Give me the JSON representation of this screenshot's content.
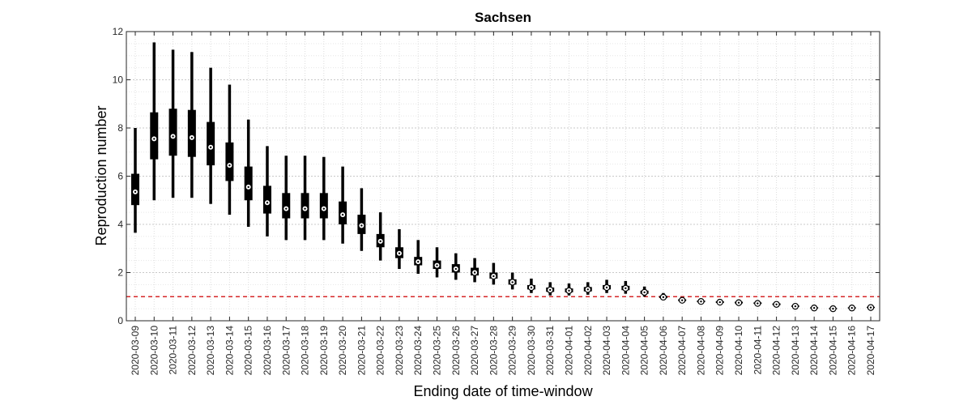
{
  "chart_data": {
    "type": "boxplot",
    "title": "Sachsen",
    "xlabel": "Ending date of time-window",
    "ylabel": "Reproduction number",
    "ylim": [
      0,
      12
    ],
    "yticks": [
      0,
      2,
      4,
      6,
      8,
      10,
      12
    ],
    "grid": true,
    "reference_line": {
      "y": 1,
      "color": "#d62728",
      "style": "dashed"
    },
    "categories": [
      "2020-03-09",
      "2020-03-10",
      "2020-03-11",
      "2020-03-12",
      "2020-03-13",
      "2020-03-14",
      "2020-03-15",
      "2020-03-16",
      "2020-03-17",
      "2020-03-18",
      "2020-03-19",
      "2020-03-20",
      "2020-03-21",
      "2020-03-22",
      "2020-03-23",
      "2020-03-24",
      "2020-03-25",
      "2020-03-26",
      "2020-03-27",
      "2020-03-28",
      "2020-03-29",
      "2020-03-30",
      "2020-03-31",
      "2020-04-01",
      "2020-04-02",
      "2020-04-03",
      "2020-04-04",
      "2020-04-05",
      "2020-04-06",
      "2020-04-07",
      "2020-04-08",
      "2020-04-09",
      "2020-04-10",
      "2020-04-11",
      "2020-04-12",
      "2020-04-13",
      "2020-04-14",
      "2020-04-15",
      "2020-04-16",
      "2020-04-17"
    ],
    "median": [
      5.35,
      7.55,
      7.65,
      7.6,
      7.2,
      6.45,
      5.55,
      4.9,
      4.65,
      4.65,
      4.65,
      4.4,
      3.95,
      3.3,
      2.8,
      2.45,
      2.3,
      2.15,
      2.0,
      1.85,
      1.6,
      1.38,
      1.28,
      1.25,
      1.3,
      1.38,
      1.35,
      1.18,
      0.98,
      0.85,
      0.8,
      0.77,
      0.75,
      0.72,
      0.68,
      0.6,
      0.53,
      0.5,
      0.53,
      0.55
    ],
    "q1": [
      4.8,
      6.7,
      6.85,
      6.8,
      6.45,
      5.8,
      5.0,
      4.45,
      4.25,
      4.25,
      4.25,
      4.0,
      3.6,
      3.05,
      2.6,
      2.3,
      2.15,
      2.0,
      1.88,
      1.75,
      1.5,
      1.3,
      1.2,
      1.18,
      1.22,
      1.3,
      1.27,
      1.12,
      0.94,
      0.82,
      0.77,
      0.74,
      0.72,
      0.7,
      0.65,
      0.58,
      0.51,
      0.48,
      0.51,
      0.53
    ],
    "q3": [
      6.1,
      8.65,
      8.8,
      8.75,
      8.25,
      7.4,
      6.4,
      5.6,
      5.3,
      5.3,
      5.3,
      4.95,
      4.4,
      3.6,
      3.05,
      2.65,
      2.5,
      2.35,
      2.2,
      2.0,
      1.72,
      1.48,
      1.38,
      1.34,
      1.4,
      1.48,
      1.45,
      1.25,
      1.03,
      0.89,
      0.84,
      0.81,
      0.79,
      0.76,
      0.72,
      0.63,
      0.56,
      0.53,
      0.56,
      0.58
    ],
    "whisker_low": [
      3.65,
      5.0,
      5.1,
      5.1,
      4.85,
      4.4,
      3.9,
      3.5,
      3.35,
      3.35,
      3.35,
      3.2,
      2.9,
      2.5,
      2.15,
      1.95,
      1.8,
      1.7,
      1.6,
      1.5,
      1.3,
      1.15,
      1.05,
      1.05,
      1.08,
      1.15,
      1.12,
      1.0,
      0.86,
      0.75,
      0.7,
      0.68,
      0.66,
      0.64,
      0.6,
      0.53,
      0.47,
      0.44,
      0.47,
      0.49
    ],
    "whisker_high": [
      8.0,
      11.55,
      11.25,
      11.15,
      10.5,
      9.8,
      8.35,
      7.25,
      6.85,
      6.85,
      6.8,
      6.4,
      5.5,
      4.5,
      3.8,
      3.35,
      3.05,
      2.8,
      2.6,
      2.4,
      2.0,
      1.75,
      1.6,
      1.55,
      1.6,
      1.7,
      1.65,
      1.42,
      1.15,
      0.98,
      0.92,
      0.88,
      0.86,
      0.82,
      0.78,
      0.7,
      0.62,
      0.58,
      0.62,
      0.64
    ],
    "colors": {
      "box": "#000000",
      "median_marker": "#ffffff",
      "reference": "#d62728",
      "grid": "#d9d9d9"
    }
  }
}
